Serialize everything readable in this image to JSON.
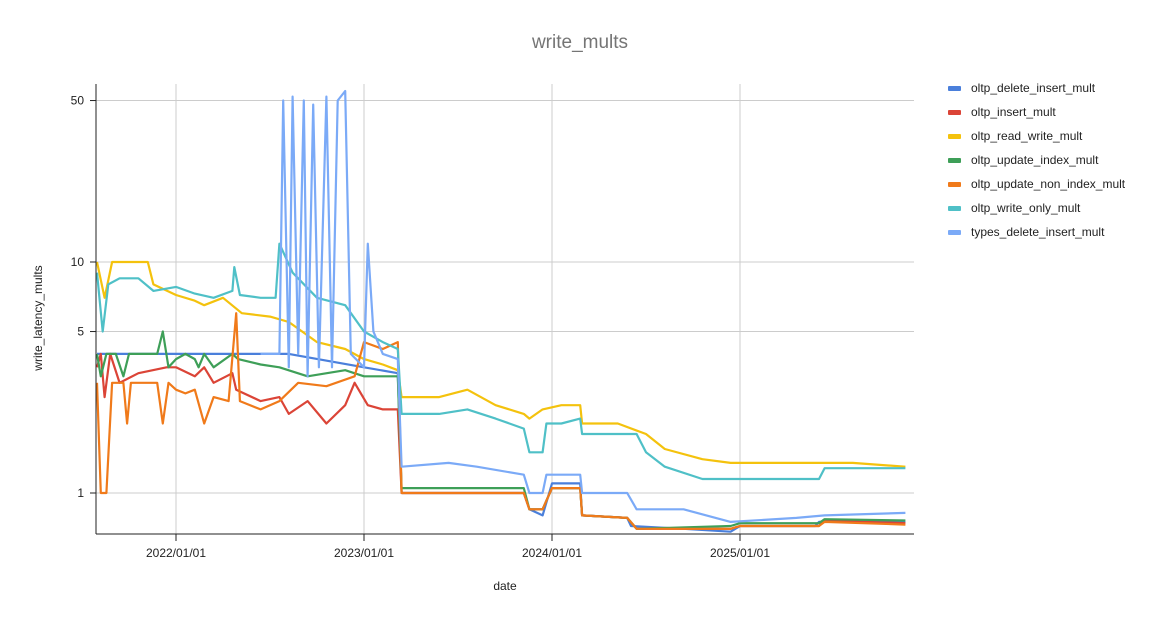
{
  "chart_data": {
    "type": "line",
    "title": "write_mults",
    "xlabel": "date",
    "ylabel": "write_latency_mults",
    "yscale": "log",
    "ylim": [
      0.65,
      70
    ],
    "yticks": [
      1,
      5,
      10,
      50
    ],
    "xticks": [
      "2022/01/01",
      "2023/01/01",
      "2024/01/01",
      "2025/01/01"
    ],
    "xrange": [
      "2021/07/28",
      "2025/11/20"
    ],
    "grid": true,
    "legend_position": "right",
    "series": [
      {
        "name": "oltp_delete_insert_mult",
        "color": "#4a7fdb",
        "points": [
          [
            2021.58,
            4
          ],
          [
            2022.5,
            4
          ],
          [
            2022.6,
            4
          ],
          [
            2023.0,
            3.5
          ],
          [
            2023.18,
            3.3
          ],
          [
            2023.2,
            1.0
          ],
          [
            2023.85,
            1.0
          ],
          [
            2023.88,
            0.85
          ],
          [
            2023.95,
            0.8
          ],
          [
            2024.0,
            1.1
          ],
          [
            2024.15,
            1.1
          ],
          [
            2024.16,
            0.8
          ],
          [
            2024.4,
            0.78
          ],
          [
            2024.42,
            0.72
          ],
          [
            2024.7,
            0.7
          ],
          [
            2024.95,
            0.68
          ],
          [
            2025.0,
            0.72
          ],
          [
            2025.4,
            0.72
          ],
          [
            2025.42,
            0.75
          ],
          [
            2025.88,
            0.75
          ]
        ]
      },
      {
        "name": "oltp_insert_mult",
        "color": "#db4437",
        "points": [
          [
            2021.58,
            3.5
          ],
          [
            2021.6,
            4
          ],
          [
            2021.62,
            2.6
          ],
          [
            2021.65,
            4
          ],
          [
            2021.7,
            3
          ],
          [
            2021.8,
            3.3
          ],
          [
            2021.95,
            3.5
          ],
          [
            2022.0,
            3.5
          ],
          [
            2022.1,
            3.2
          ],
          [
            2022.15,
            3.5
          ],
          [
            2022.2,
            3.0
          ],
          [
            2022.3,
            3.3
          ],
          [
            2022.32,
            2.8
          ],
          [
            2022.45,
            2.5
          ],
          [
            2022.55,
            2.6
          ],
          [
            2022.6,
            2.2
          ],
          [
            2022.7,
            2.5
          ],
          [
            2022.8,
            2.0
          ],
          [
            2022.9,
            2.4
          ],
          [
            2022.95,
            3.0
          ],
          [
            2023.02,
            2.4
          ],
          [
            2023.1,
            2.3
          ],
          [
            2023.18,
            2.3
          ],
          [
            2023.2,
            1.0
          ],
          [
            2023.85,
            1.0
          ],
          [
            2023.88,
            0.85
          ],
          [
            2023.95,
            0.85
          ],
          [
            2024.0,
            1.05
          ],
          [
            2024.15,
            1.05
          ],
          [
            2024.16,
            0.8
          ],
          [
            2024.4,
            0.78
          ],
          [
            2024.45,
            0.7
          ],
          [
            2024.95,
            0.7
          ],
          [
            2025.0,
            0.72
          ],
          [
            2025.42,
            0.72
          ],
          [
            2025.45,
            0.76
          ],
          [
            2025.88,
            0.74
          ]
        ]
      },
      {
        "name": "oltp_read_write_mult",
        "color": "#f4c20d",
        "points": [
          [
            2021.58,
            10
          ],
          [
            2021.62,
            7
          ],
          [
            2021.66,
            10
          ],
          [
            2021.85,
            10
          ],
          [
            2021.88,
            8
          ],
          [
            2022.0,
            7.2
          ],
          [
            2022.1,
            6.8
          ],
          [
            2022.15,
            6.5
          ],
          [
            2022.25,
            7.0
          ],
          [
            2022.35,
            6.0
          ],
          [
            2022.5,
            5.8
          ],
          [
            2022.6,
            5.5
          ],
          [
            2022.75,
            4.5
          ],
          [
            2022.9,
            4.2
          ],
          [
            2023.0,
            3.8
          ],
          [
            2023.1,
            3.6
          ],
          [
            2023.18,
            3.4
          ],
          [
            2023.2,
            2.6
          ],
          [
            2023.4,
            2.6
          ],
          [
            2023.55,
            2.8
          ],
          [
            2023.7,
            2.4
          ],
          [
            2023.85,
            2.2
          ],
          [
            2023.88,
            2.1
          ],
          [
            2023.95,
            2.3
          ],
          [
            2024.05,
            2.4
          ],
          [
            2024.15,
            2.4
          ],
          [
            2024.16,
            2.0
          ],
          [
            2024.35,
            2.0
          ],
          [
            2024.5,
            1.8
          ],
          [
            2024.6,
            1.55
          ],
          [
            2024.8,
            1.4
          ],
          [
            2024.95,
            1.35
          ],
          [
            2025.2,
            1.35
          ],
          [
            2025.6,
            1.35
          ],
          [
            2025.88,
            1.3
          ]
        ]
      },
      {
        "name": "oltp_update_index_mult",
        "color": "#3e9f58",
        "points": [
          [
            2021.58,
            4.0
          ],
          [
            2021.6,
            3.2
          ],
          [
            2021.63,
            4.0
          ],
          [
            2021.68,
            4.0
          ],
          [
            2021.72,
            3.2
          ],
          [
            2021.75,
            4.0
          ],
          [
            2021.9,
            4.0
          ],
          [
            2021.93,
            5.0
          ],
          [
            2021.96,
            3.5
          ],
          [
            2022.0,
            3.8
          ],
          [
            2022.05,
            4.0
          ],
          [
            2022.1,
            3.8
          ],
          [
            2022.12,
            3.5
          ],
          [
            2022.15,
            4.0
          ],
          [
            2022.2,
            3.5
          ],
          [
            2022.3,
            4.0
          ],
          [
            2022.33,
            3.8
          ],
          [
            2022.45,
            3.6
          ],
          [
            2022.55,
            3.5
          ],
          [
            2022.7,
            3.2
          ],
          [
            2022.9,
            3.4
          ],
          [
            2023.0,
            3.2
          ],
          [
            2023.18,
            3.2
          ],
          [
            2023.2,
            1.05
          ],
          [
            2023.85,
            1.05
          ],
          [
            2023.88,
            0.85
          ],
          [
            2023.95,
            0.85
          ],
          [
            2024.0,
            1.05
          ],
          [
            2024.15,
            1.05
          ],
          [
            2024.16,
            0.8
          ],
          [
            2024.4,
            0.78
          ],
          [
            2024.45,
            0.7
          ],
          [
            2024.95,
            0.72
          ],
          [
            2025.0,
            0.74
          ],
          [
            2025.42,
            0.74
          ],
          [
            2025.45,
            0.77
          ],
          [
            2025.88,
            0.76
          ]
        ]
      },
      {
        "name": "oltp_update_non_index_mult",
        "color": "#f07a1a",
        "points": [
          [
            2021.58,
            3.0
          ],
          [
            2021.6,
            1.0
          ],
          [
            2021.63,
            1.0
          ],
          [
            2021.66,
            3.0
          ],
          [
            2021.72,
            3.0
          ],
          [
            2021.74,
            2.0
          ],
          [
            2021.76,
            3.0
          ],
          [
            2021.9,
            3.0
          ],
          [
            2021.93,
            2.0
          ],
          [
            2021.96,
            3.0
          ],
          [
            2022.0,
            2.8
          ],
          [
            2022.05,
            2.7
          ],
          [
            2022.1,
            2.8
          ],
          [
            2022.15,
            2.0
          ],
          [
            2022.2,
            2.6
          ],
          [
            2022.28,
            2.5
          ],
          [
            2022.32,
            6.0
          ],
          [
            2022.34,
            2.5
          ],
          [
            2022.45,
            2.3
          ],
          [
            2022.55,
            2.5
          ],
          [
            2022.65,
            3.0
          ],
          [
            2022.8,
            2.9
          ],
          [
            2022.95,
            3.2
          ],
          [
            2023.0,
            4.5
          ],
          [
            2023.1,
            4.2
          ],
          [
            2023.18,
            4.5
          ],
          [
            2023.2,
            1.0
          ],
          [
            2023.85,
            1.0
          ],
          [
            2023.88,
            0.85
          ],
          [
            2023.95,
            0.85
          ],
          [
            2024.0,
            1.05
          ],
          [
            2024.15,
            1.05
          ],
          [
            2024.16,
            0.8
          ],
          [
            2024.4,
            0.78
          ],
          [
            2024.45,
            0.7
          ],
          [
            2024.95,
            0.7
          ],
          [
            2025.0,
            0.72
          ],
          [
            2025.42,
            0.72
          ],
          [
            2025.45,
            0.75
          ],
          [
            2025.88,
            0.73
          ]
        ]
      },
      {
        "name": "oltp_write_only_mult",
        "color": "#4fc0c7",
        "points": [
          [
            2021.58,
            9.0
          ],
          [
            2021.61,
            5.0
          ],
          [
            2021.64,
            8.0
          ],
          [
            2021.7,
            8.5
          ],
          [
            2021.8,
            8.5
          ],
          [
            2021.88,
            7.5
          ],
          [
            2022.0,
            7.8
          ],
          [
            2022.1,
            7.3
          ],
          [
            2022.2,
            7.0
          ],
          [
            2022.3,
            7.5
          ],
          [
            2022.31,
            9.5
          ],
          [
            2022.34,
            7.2
          ],
          [
            2022.45,
            7.0
          ],
          [
            2022.53,
            7.0
          ],
          [
            2022.55,
            12
          ],
          [
            2022.62,
            9.0
          ],
          [
            2022.75,
            7.0
          ],
          [
            2022.9,
            6.5
          ],
          [
            2023.0,
            5.0
          ],
          [
            2023.1,
            4.5
          ],
          [
            2023.18,
            4.2
          ],
          [
            2023.2,
            2.2
          ],
          [
            2023.4,
            2.2
          ],
          [
            2023.55,
            2.3
          ],
          [
            2023.7,
            2.1
          ],
          [
            2023.85,
            1.9
          ],
          [
            2023.88,
            1.5
          ],
          [
            2023.95,
            1.5
          ],
          [
            2023.97,
            2.0
          ],
          [
            2024.05,
            2.0
          ],
          [
            2024.15,
            2.1
          ],
          [
            2024.16,
            1.8
          ],
          [
            2024.45,
            1.8
          ],
          [
            2024.5,
            1.5
          ],
          [
            2024.6,
            1.3
          ],
          [
            2024.8,
            1.15
          ],
          [
            2024.95,
            1.15
          ],
          [
            2025.2,
            1.15
          ],
          [
            2025.42,
            1.15
          ],
          [
            2025.45,
            1.28
          ],
          [
            2025.88,
            1.28
          ]
        ]
      },
      {
        "name": "types_delete_insert_mult",
        "color": "#7baaf7",
        "points": [
          [
            2022.45,
            4.0
          ],
          [
            2022.55,
            4.0
          ],
          [
            2022.57,
            50
          ],
          [
            2022.6,
            3.5
          ],
          [
            2022.62,
            52
          ],
          [
            2022.65,
            4
          ],
          [
            2022.68,
            50
          ],
          [
            2022.7,
            3.2
          ],
          [
            2022.73,
            48
          ],
          [
            2022.76,
            3.5
          ],
          [
            2022.8,
            52
          ],
          [
            2022.83,
            3.5
          ],
          [
            2022.86,
            50
          ],
          [
            2022.9,
            55
          ],
          [
            2022.93,
            4.0
          ],
          [
            2023.0,
            3.5
          ],
          [
            2023.02,
            12
          ],
          [
            2023.05,
            5
          ],
          [
            2023.1,
            4.0
          ],
          [
            2023.18,
            3.8
          ],
          [
            2023.2,
            1.3
          ],
          [
            2023.45,
            1.35
          ],
          [
            2023.6,
            1.3
          ],
          [
            2023.85,
            1.2
          ],
          [
            2023.88,
            1.0
          ],
          [
            2023.95,
            1.0
          ],
          [
            2023.97,
            1.2
          ],
          [
            2024.15,
            1.2
          ],
          [
            2024.16,
            1.0
          ],
          [
            2024.4,
            1.0
          ],
          [
            2024.45,
            0.85
          ],
          [
            2024.7,
            0.85
          ],
          [
            2024.95,
            0.75
          ],
          [
            2025.3,
            0.78
          ],
          [
            2025.45,
            0.8
          ],
          [
            2025.88,
            0.82
          ]
        ]
      }
    ]
  }
}
